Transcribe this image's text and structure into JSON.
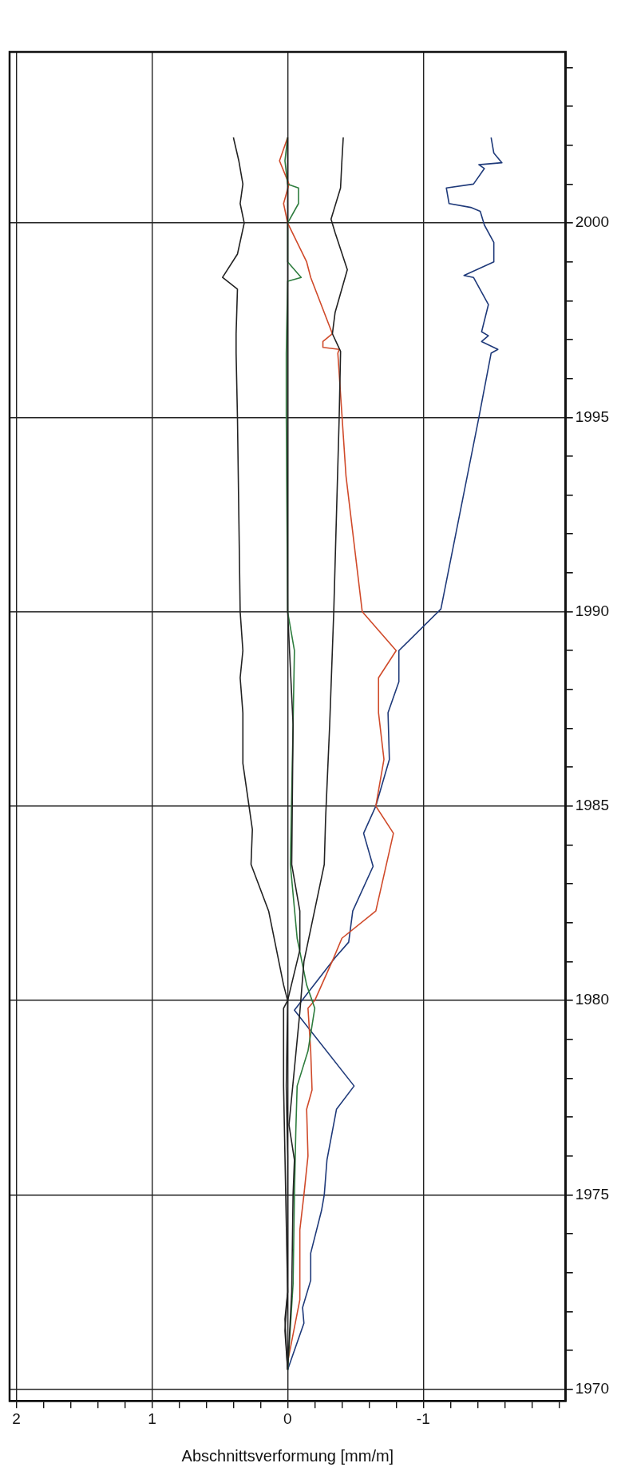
{
  "chart_data": {
    "type": "line",
    "xlabel": "Abschnittsverformung [mm/m]",
    "xlim": [
      2.05,
      -2.05
    ],
    "ylim": [
      1969.7,
      2004.4
    ],
    "xticks": [
      2,
      {
        "value": 1.8,
        "label": null
      },
      {
        "value": 1.6,
        "label": null
      },
      {
        "value": 1.4,
        "label": null
      },
      {
        "value": 1.2,
        "label": null
      },
      1,
      {
        "value": 0.8,
        "label": null
      },
      {
        "value": 0.6,
        "label": null
      },
      {
        "value": 0.4,
        "label": null
      },
      {
        "value": 0.2,
        "label": null
      },
      0,
      {
        "value": -0.2,
        "label": null
      },
      {
        "value": -0.4,
        "label": null
      },
      {
        "value": -0.6,
        "label": null
      },
      {
        "value": -0.8,
        "label": null
      },
      -1,
      {
        "value": -1.2,
        "label": null
      },
      {
        "value": -1.4,
        "label": null
      },
      {
        "value": -1.6,
        "label": null
      },
      {
        "value": -1.8,
        "label": null
      },
      {
        "value": -2,
        "label": null
      }
    ],
    "yticks": [
      1970,
      {
        "value": 1971,
        "label": null
      },
      {
        "value": 1972,
        "label": null
      },
      {
        "value": 1973,
        "label": null
      },
      {
        "value": 1974,
        "label": null
      },
      1975,
      {
        "value": 1976,
        "label": null
      },
      {
        "value": 1977,
        "label": null
      },
      {
        "value": 1978,
        "label": null
      },
      {
        "value": 1979,
        "label": null
      },
      1980,
      {
        "value": 1981,
        "label": null
      },
      {
        "value": 1982,
        "label": null
      },
      {
        "value": 1983,
        "label": null
      },
      {
        "value": 1984,
        "label": null
      },
      1985,
      {
        "value": 1986,
        "label": null
      },
      {
        "value": 1987,
        "label": null
      },
      {
        "value": 1988,
        "label": null
      },
      {
        "value": 1989,
        "label": null
      },
      1990,
      {
        "value": 1991,
        "label": null
      },
      {
        "value": 1992,
        "label": null
      },
      {
        "value": 1993,
        "label": null
      },
      {
        "value": 1994,
        "label": null
      },
      1995,
      {
        "value": 1996,
        "label": null
      },
      {
        "value": 1997,
        "label": null
      },
      {
        "value": 1998,
        "label": null
      },
      {
        "value": 1999,
        "label": null
      },
      2000,
      {
        "value": 2001,
        "label": null
      },
      {
        "value": 2002,
        "label": null
      },
      {
        "value": 2003,
        "label": null
      },
      {
        "value": 2004,
        "label": null
      }
    ],
    "grid": true,
    "marker": "none",
    "line_style": "solid",
    "series": [
      {
        "color": "#222222",
        "values": [
          1970.5,
          1971.8,
          1972.5,
          1976,
          1977.8,
          1980,
          1980.4,
          1982.3,
          1983.5,
          1984.4,
          1986.1,
          1987.4,
          1988.3,
          1989,
          1990,
          1995,
          1996.65,
          1997.15,
          1998.3,
          1998.6,
          1999.2,
          2000,
          2000.5,
          2001,
          2001.6,
          2002.2
        ],
        "x": [
          0,
          0.02,
          0,
          0,
          0.01,
          0,
          0.03,
          0.14,
          0.27,
          0.26,
          0.33,
          0.33,
          0.35,
          0.33,
          0.35,
          0.37,
          0.38,
          0.38,
          0.37,
          0.48,
          0.37,
          0.32,
          0.35,
          0.33,
          0.36,
          0.4
        ]
      },
      {
        "color": "#222222",
        "values": [
          1970.5,
          1972.5,
          1975,
          1975.9,
          1976.8,
          1979.7,
          1981,
          1983.5,
          1984.7,
          1987.1,
          1990,
          1995,
          1996.65,
          1996.7,
          1997.15,
          1997.7,
          1998.8,
          1999.75,
          2000.1,
          2000.9,
          2001.6,
          2002.2
        ],
        "x": [
          0,
          -0.03,
          -0.04,
          -0.05,
          -0.01,
          -0.09,
          -0.12,
          -0.27,
          -0.28,
          -0.31,
          -0.34,
          -0.38,
          -0.39,
          -0.39,
          -0.33,
          -0.35,
          -0.44,
          -0.35,
          -0.32,
          -0.39,
          -0.4,
          -0.41
        ]
      },
      {
        "color": "#222222",
        "values": [
          1970.5,
          1971.5,
          1972.5,
          1977.8,
          1979.8,
          1980,
          1981.3,
          1982.3,
          1983.5,
          1987.1,
          1990,
          2002.2
        ],
        "x": [
          0,
          0.02,
          0,
          0.03,
          0.03,
          0,
          -0.09,
          -0.09,
          -0.03,
          -0.04,
          0,
          0
        ]
      },
      {
        "color": "#2e7d3e",
        "values": [
          1970.5,
          1972.7,
          1975,
          1976.6,
          1977.8,
          1978.7,
          1979.8,
          1980.4,
          1981.6,
          1983.5,
          1987.1,
          1989,
          1990,
          1995,
          1996.65,
          1998.5,
          1998.6,
          1999,
          2000,
          2000.5,
          2000.9,
          2001,
          2001.6,
          2002.2
        ],
        "x": [
          0,
          -0.04,
          -0.05,
          -0.06,
          -0.07,
          -0.15,
          -0.2,
          -0.14,
          -0.07,
          -0.02,
          -0.04,
          -0.05,
          0,
          0.01,
          0.01,
          0,
          -0.1,
          0,
          0,
          -0.08,
          -0.08,
          0,
          0.02,
          0
        ]
      },
      {
        "color": "#d04a2a",
        "values": [
          1970.7,
          1972.3,
          1974.1,
          1975,
          1976,
          1977.2,
          1977.7,
          1978.7,
          1979.8,
          1980,
          1981.1,
          1981.6,
          1982.3,
          1984.3,
          1985,
          1986.2,
          1987.4,
          1988.3,
          1989,
          1990,
          1993.5,
          1996.65,
          1996.75,
          1996.8,
          1996.95,
          1997.15,
          1998.6,
          1999,
          2000,
          2000.5,
          2001,
          2001.6,
          2002.2
        ],
        "x": [
          0,
          -0.09,
          -0.09,
          -0.12,
          -0.15,
          -0.14,
          -0.18,
          -0.17,
          -0.15,
          -0.2,
          -0.34,
          -0.4,
          -0.65,
          -0.78,
          -0.65,
          -0.71,
          -0.67,
          -0.67,
          -0.8,
          -0.55,
          -0.43,
          -0.37,
          -0.38,
          -0.26,
          -0.26,
          -0.33,
          -0.17,
          -0.14,
          0,
          0.03,
          -0.01,
          0.06,
          0
        ]
      },
      {
        "color": "#1f3a7a",
        "values": [
          1970.5,
          1971.7,
          1972.1,
          1972.8,
          1973.5,
          1974.6,
          1975,
          1975.9,
          1977.2,
          1977.8,
          1979.75,
          1981.1,
          1981.5,
          1982.3,
          1983.45,
          1984.3,
          1985,
          1986.2,
          1987.4,
          1988.2,
          1989,
          1990.07,
          1995,
          1996.65,
          1996.75,
          1996.95,
          1997.1,
          1997.2,
          1997.9,
          1998.6,
          1998.65,
          1999,
          1999.5,
          1999.95,
          2000.3,
          2000.4,
          2000.5,
          2000.9,
          2001,
          2001.4,
          2001.5,
          2001.55,
          2001.8,
          2002.2
        ],
        "x": [
          0,
          -0.12,
          -0.11,
          -0.17,
          -0.17,
          -0.25,
          -0.27,
          -0.29,
          -0.36,
          -0.49,
          -0.05,
          -0.35,
          -0.45,
          -0.48,
          -0.63,
          -0.56,
          -0.65,
          -0.75,
          -0.74,
          -0.82,
          -0.82,
          -1.13,
          -1.41,
          -1.5,
          -1.55,
          -1.43,
          -1.48,
          -1.43,
          -1.48,
          -1.37,
          -1.3,
          -1.52,
          -1.52,
          -1.45,
          -1.42,
          -1.35,
          -1.19,
          -1.17,
          -1.37,
          -1.45,
          -1.41,
          -1.58,
          -1.52,
          -1.5
        ]
      }
    ]
  }
}
